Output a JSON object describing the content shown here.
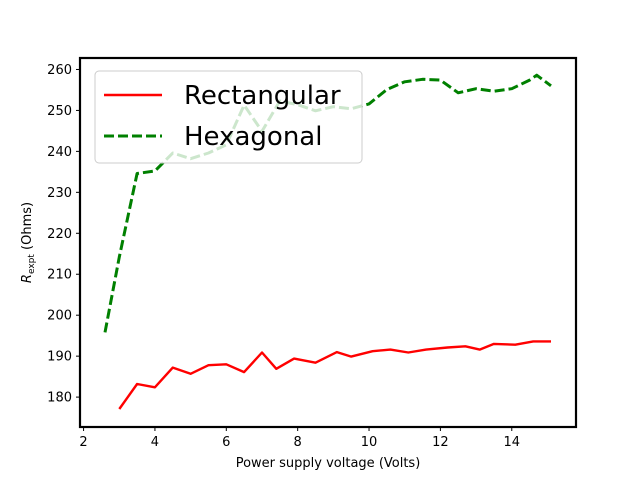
{
  "chart_data": {
    "type": "line",
    "title": "",
    "xlabel": "Power supply voltage (Volts)",
    "ylabel": {
      "main": "R",
      "subscript": "expt",
      "suffix": " (Ohms)"
    },
    "xlim": [
      1.9,
      15.8
    ],
    "ylim": [
      172.7,
      262.8
    ],
    "xticks": [
      2,
      4,
      6,
      8,
      10,
      12,
      14
    ],
    "yticks": [
      180,
      190,
      200,
      210,
      220,
      230,
      240,
      250,
      260
    ],
    "grid": false,
    "legend_position": "upper-left",
    "series": [
      {
        "name": "Rectangular",
        "color": "#ff0000",
        "style": "solid",
        "x": [
          3.0,
          3.5,
          4.0,
          4.5,
          5.0,
          5.5,
          6.0,
          6.5,
          7.0,
          7.4,
          7.9,
          8.5,
          9.1,
          9.5,
          10.1,
          10.6,
          11.1,
          11.6,
          12.2,
          12.7,
          13.1,
          13.5,
          14.1,
          14.6,
          15.1
        ],
        "values": [
          177.1,
          183.2,
          182.4,
          187.2,
          185.7,
          187.8,
          188.0,
          186.1,
          190.9,
          186.9,
          189.4,
          188.4,
          191.0,
          189.9,
          191.2,
          191.6,
          190.9,
          191.6,
          192.1,
          192.4,
          191.6,
          193.0,
          192.8,
          193.6,
          193.6
        ]
      },
      {
        "name": "Hexagonal",
        "color": "#008000",
        "style": "dashed",
        "x": [
          2.6,
          3.0,
          3.5,
          4.0,
          4.5,
          5.0,
          5.5,
          6.0,
          6.5,
          7.0,
          7.5,
          8.0,
          8.5,
          9.0,
          9.5,
          10.0,
          10.5,
          11.0,
          11.5,
          12.0,
          12.5,
          13.0,
          13.5,
          14.0,
          14.5,
          14.7,
          15.1
        ],
        "values": [
          195.8,
          214.2,
          234.6,
          235.2,
          239.6,
          238.2,
          239.6,
          241.6,
          251.3,
          244.9,
          252.3,
          251.4,
          249.9,
          250.9,
          250.4,
          251.6,
          255.1,
          257.0,
          257.6,
          257.4,
          254.3,
          255.3,
          254.7,
          255.3,
          257.4,
          258.6,
          256.0
        ]
      }
    ]
  }
}
